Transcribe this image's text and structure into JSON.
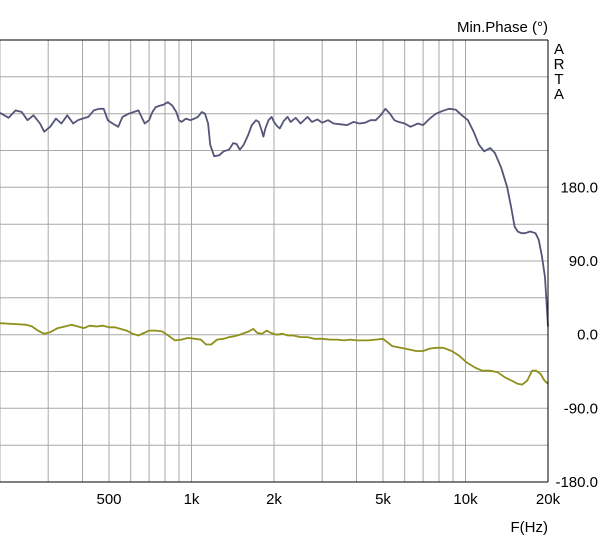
{
  "chart_data": {
    "type": "line",
    "title": "",
    "ylabel": "Min.Phase (°)",
    "xlabel": "F(Hz)",
    "watermark": "ARTA",
    "x_scale": "log",
    "xlim": [
      200,
      20000
    ],
    "x_ticks": [
      {
        "value": 500,
        "label": "500"
      },
      {
        "value": 1000,
        "label": "1k"
      },
      {
        "value": 2000,
        "label": "2k"
      },
      {
        "value": 5000,
        "label": "5k"
      },
      {
        "value": 10000,
        "label": "10k"
      },
      {
        "value": 20000,
        "label": "20k"
      }
    ],
    "ylim": [
      -180,
      360
    ],
    "y_ticks": [
      {
        "value": 180,
        "label": "180.0"
      },
      {
        "value": 90,
        "label": "90.0"
      },
      {
        "value": 0,
        "label": "0.0"
      },
      {
        "value": -90,
        "label": "-90.0"
      },
      {
        "value": -180,
        "label": "-180.0"
      }
    ],
    "grid": true,
    "series": [
      {
        "color": "#55557a",
        "points": [
          [
            200,
            271
          ],
          [
            215,
            265
          ],
          [
            228,
            274
          ],
          [
            240,
            272
          ],
          [
            252,
            262
          ],
          [
            265,
            268
          ],
          [
            280,
            258
          ],
          [
            290,
            248
          ],
          [
            305,
            254
          ],
          [
            320,
            264
          ],
          [
            335,
            258
          ],
          [
            352,
            268
          ],
          [
            370,
            258
          ],
          [
            385,
            262
          ],
          [
            400,
            264
          ],
          [
            420,
            266
          ],
          [
            440,
            274
          ],
          [
            460,
            276
          ],
          [
            478,
            276
          ],
          [
            495,
            262
          ],
          [
            515,
            258
          ],
          [
            540,
            254
          ],
          [
            560,
            266
          ],
          [
            590,
            270
          ],
          [
            615,
            272
          ],
          [
            640,
            274
          ],
          [
            675,
            258
          ],
          [
            700,
            262
          ],
          [
            720,
            272
          ],
          [
            740,
            278
          ],
          [
            770,
            280
          ],
          [
            790,
            281
          ],
          [
            820,
            284
          ],
          [
            850,
            280
          ],
          [
            880,
            272
          ],
          [
            900,
            262
          ],
          [
            920,
            260
          ],
          [
            955,
            264
          ],
          [
            990,
            262
          ],
          [
            1025,
            264
          ],
          [
            1055,
            266
          ],
          [
            1090,
            272
          ],
          [
            1120,
            270
          ],
          [
            1150,
            258
          ],
          [
            1170,
            232
          ],
          [
            1210,
            218
          ],
          [
            1260,
            219
          ],
          [
            1310,
            224
          ],
          [
            1370,
            226
          ],
          [
            1420,
            234
          ],
          [
            1460,
            233
          ],
          [
            1500,
            226
          ],
          [
            1550,
            232
          ],
          [
            1610,
            244
          ],
          [
            1660,
            256
          ],
          [
            1720,
            262
          ],
          [
            1760,
            260
          ],
          [
            1800,
            250
          ],
          [
            1830,
            242
          ],
          [
            1860,
            252
          ],
          [
            1910,
            262
          ],
          [
            1960,
            266
          ],
          [
            2000,
            260
          ],
          [
            2050,
            255
          ],
          [
            2100,
            252
          ],
          [
            2170,
            261
          ],
          [
            2240,
            266
          ],
          [
            2300,
            260
          ],
          [
            2400,
            265
          ],
          [
            2500,
            258
          ],
          [
            2650,
            266
          ],
          [
            2750,
            260
          ],
          [
            2880,
            263
          ],
          [
            3000,
            259
          ],
          [
            3150,
            262
          ],
          [
            3300,
            258
          ],
          [
            3500,
            257
          ],
          [
            3700,
            256
          ],
          [
            3900,
            260
          ],
          [
            4100,
            258
          ],
          [
            4300,
            259
          ],
          [
            4500,
            262
          ],
          [
            4700,
            262
          ],
          [
            4900,
            268
          ],
          [
            5100,
            276
          ],
          [
            5300,
            270
          ],
          [
            5500,
            262
          ],
          [
            5700,
            260
          ],
          [
            6000,
            258
          ],
          [
            6300,
            254
          ],
          [
            6700,
            258
          ],
          [
            7000,
            256
          ],
          [
            7400,
            264
          ],
          [
            7800,
            270
          ],
          [
            8200,
            273
          ],
          [
            8700,
            276
          ],
          [
            9200,
            275
          ],
          [
            9700,
            268
          ],
          [
            10200,
            262
          ],
          [
            10700,
            248
          ],
          [
            11200,
            232
          ],
          [
            11700,
            224
          ],
          [
            12300,
            228
          ],
          [
            12800,
            222
          ],
          [
            13500,
            204
          ],
          [
            14200,
            180
          ],
          [
            14700,
            154
          ],
          [
            15100,
            132
          ],
          [
            15500,
            126
          ],
          [
            16000,
            124
          ],
          [
            16500,
            124
          ],
          [
            17200,
            126
          ],
          [
            18000,
            124
          ],
          [
            18500,
            116
          ],
          [
            19000,
            96
          ],
          [
            19500,
            70
          ],
          [
            20000,
            10
          ]
        ]
      },
      {
        "color": "#8f8f1a",
        "points": [
          [
            200,
            14
          ],
          [
            225,
            13
          ],
          [
            250,
            12
          ],
          [
            262,
            10
          ],
          [
            275,
            5
          ],
          [
            290,
            1
          ],
          [
            305,
            3
          ],
          [
            325,
            8
          ],
          [
            345,
            10
          ],
          [
            365,
            12
          ],
          [
            385,
            10
          ],
          [
            405,
            8
          ],
          [
            425,
            11
          ],
          [
            450,
            10
          ],
          [
            475,
            11
          ],
          [
            500,
            9
          ],
          [
            525,
            9
          ],
          [
            550,
            7
          ],
          [
            580,
            5
          ],
          [
            610,
            1
          ],
          [
            640,
            -1
          ],
          [
            670,
            2
          ],
          [
            700,
            5
          ],
          [
            740,
            5
          ],
          [
            780,
            4
          ],
          [
            830,
            -2
          ],
          [
            870,
            -7
          ],
          [
            920,
            -6
          ],
          [
            970,
            -4
          ],
          [
            1030,
            -5
          ],
          [
            1080,
            -6
          ],
          [
            1130,
            -12
          ],
          [
            1180,
            -12
          ],
          [
            1240,
            -6
          ],
          [
            1310,
            -5
          ],
          [
            1370,
            -3
          ],
          [
            1430,
            -2
          ],
          [
            1500,
            0
          ],
          [
            1560,
            2
          ],
          [
            1620,
            4
          ],
          [
            1680,
            7
          ],
          [
            1740,
            2
          ],
          [
            1810,
            1
          ],
          [
            1880,
            5
          ],
          [
            1950,
            2
          ],
          [
            2050,
            0
          ],
          [
            2150,
            1
          ],
          [
            2250,
            -1
          ],
          [
            2350,
            -1
          ],
          [
            2500,
            -3
          ],
          [
            2650,
            -3
          ],
          [
            2800,
            -5
          ],
          [
            3000,
            -5
          ],
          [
            3200,
            -6
          ],
          [
            3400,
            -6
          ],
          [
            3600,
            -7
          ],
          [
            3800,
            -6
          ],
          [
            4000,
            -7
          ],
          [
            4200,
            -7
          ],
          [
            4400,
            -7
          ],
          [
            4700,
            -6
          ],
          [
            5000,
            -5
          ],
          [
            5400,
            -14
          ],
          [
            5800,
            -16
          ],
          [
            6200,
            -18
          ],
          [
            6600,
            -20
          ],
          [
            7000,
            -20
          ],
          [
            7400,
            -17
          ],
          [
            7800,
            -16
          ],
          [
            8300,
            -16
          ],
          [
            8900,
            -20
          ],
          [
            9500,
            -26
          ],
          [
            10100,
            -34
          ],
          [
            10800,
            -40
          ],
          [
            11500,
            -44
          ],
          [
            12300,
            -44
          ],
          [
            13100,
            -46
          ],
          [
            13900,
            -52
          ],
          [
            14700,
            -56
          ],
          [
            15500,
            -60
          ],
          [
            16100,
            -61
          ],
          [
            16800,
            -56
          ],
          [
            17500,
            -44
          ],
          [
            18100,
            -44
          ],
          [
            18800,
            -48
          ],
          [
            19400,
            -56
          ],
          [
            20000,
            -60
          ]
        ]
      }
    ]
  }
}
